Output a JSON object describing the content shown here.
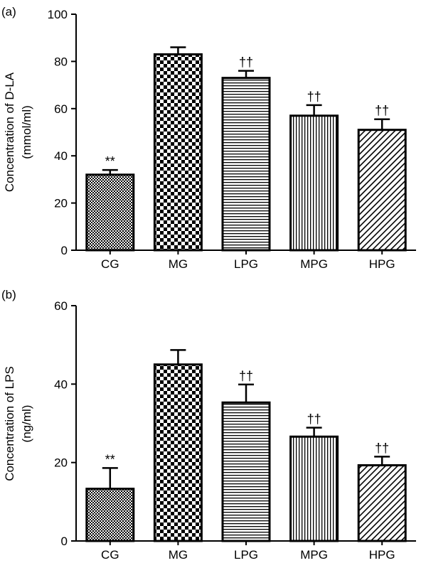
{
  "chart_data": [
    {
      "panel_label": "(a)",
      "type": "bar",
      "categories": [
        "CG",
        "MG",
        "LPG",
        "MPG",
        "HPG"
      ],
      "values": [
        32,
        83,
        73,
        57,
        51
      ],
      "errors": [
        2,
        3,
        3,
        4.5,
        4.5
      ],
      "annotations": [
        "**",
        "",
        "††",
        "††",
        "††"
      ],
      "patterns": [
        "fine-checker",
        "checker",
        "horizontal-lines",
        "vertical-lines",
        "diagonal-lines"
      ],
      "ylabel": "Concentration of D-LA",
      "ylabel_unit": "(mmol/ml)",
      "ylim": [
        0,
        100
      ],
      "yticks": [
        0,
        20,
        40,
        60,
        80,
        100
      ],
      "grid": false
    },
    {
      "panel_label": "(b)",
      "type": "bar",
      "categories": [
        "CG",
        "MG",
        "LPG",
        "MPG",
        "HPG"
      ],
      "values": [
        13.3,
        45,
        35.3,
        26.6,
        19.3
      ],
      "errors": [
        5.3,
        3.7,
        4.6,
        2.3,
        2.2
      ],
      "annotations": [
        "**",
        "",
        "††",
        "††",
        "††"
      ],
      "patterns": [
        "fine-checker",
        "checker",
        "horizontal-lines",
        "vertical-lines",
        "diagonal-lines"
      ],
      "ylabel": "Concentration of LPS",
      "ylabel_unit": "(ng/ml)",
      "ylim": [
        0,
        60
      ],
      "yticks": [
        0,
        20,
        40,
        60
      ],
      "grid": false
    }
  ]
}
